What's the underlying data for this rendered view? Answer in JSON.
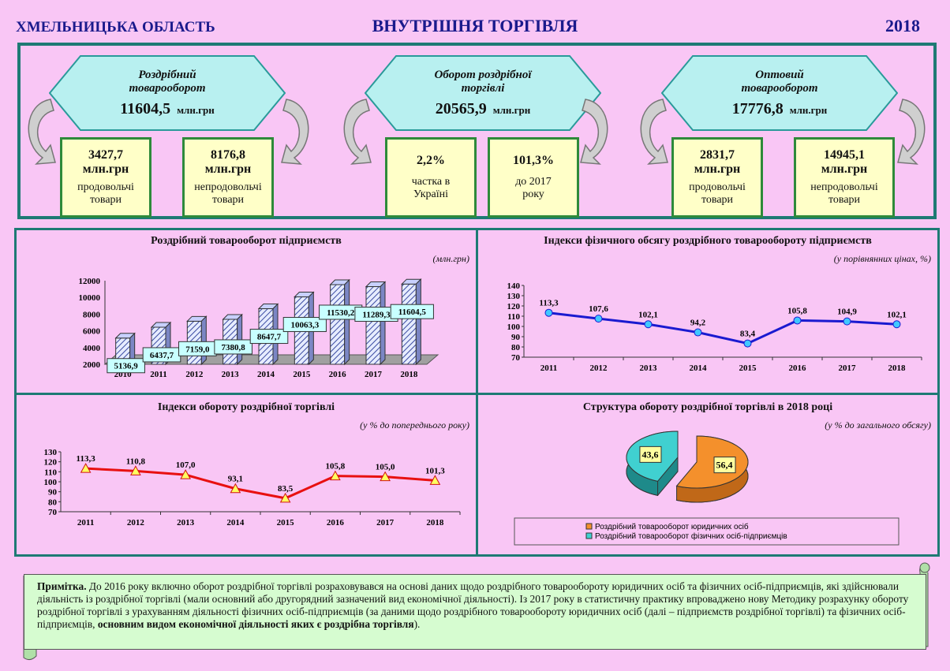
{
  "header": {
    "region": "ХМЕЛЬНИЦЬКА ОБЛАСТЬ",
    "title": "ВНУТРІШНЯ ТОРГІВЛЯ",
    "year": "2018"
  },
  "top": {
    "hexes": [
      {
        "line1": "Роздрібний",
        "line2": "товарооборот",
        "value": "11604,5",
        "unit": "млн.грн"
      },
      {
        "line1": "Оборот роздрібної",
        "line2": "торгівлі",
        "value": "20565,9",
        "unit": "млн.грн"
      },
      {
        "line1": "Оптовий",
        "line2": "товарооборот",
        "value": "17776,8",
        "unit": "млн.грн"
      }
    ],
    "boxes": [
      {
        "value": "3427,7",
        "unit": "млн.грн",
        "l1": "продовольчі",
        "l2": "товари"
      },
      {
        "value": "8176,8",
        "unit": "млн.грн",
        "l1": "непродовольчі",
        "l2": "товари"
      },
      {
        "value": "2,2%",
        "unit": "",
        "l1": "частка в",
        "l2": "Україні"
      },
      {
        "value": "101,3%",
        "unit": "",
        "l1": "до 2017",
        "l2": "року"
      },
      {
        "value": "2831,7",
        "unit": "млн.грн",
        "l1": "продовольчі",
        "l2": "товари"
      },
      {
        "value": "14945,1",
        "unit": "млн.грн",
        "l1": "непродовольчі",
        "l2": "товари"
      }
    ]
  },
  "chart_data": [
    {
      "type": "bar",
      "title": "Роздрібний товарооборот підприємств",
      "unit": "(млн.грн)",
      "categories": [
        "2010",
        "2011",
        "2012",
        "2013",
        "2014",
        "2015",
        "2016",
        "2017",
        "2018"
      ],
      "values": [
        5136.9,
        6437.7,
        7159.0,
        7380.8,
        8647.7,
        10063.3,
        11530.2,
        11289.3,
        11604.5
      ],
      "labels": [
        "5136,9",
        "6437,7",
        "7159,0",
        "7380,8",
        "8647,7",
        "10063,3",
        "11530,2",
        "11289,3",
        "11604,5"
      ],
      "ylim": [
        2000,
        12000
      ],
      "yticks": [
        "2000",
        "4000",
        "6000",
        "8000",
        "10000",
        "12000"
      ]
    },
    {
      "type": "line",
      "title": "Індекси фізичного обсягу роздрібного товарообороту підприємств",
      "unit": "(у порівнянних цінах, %)",
      "categories": [
        "2011",
        "2012",
        "2013",
        "2014",
        "2015",
        "2016",
        "2017",
        "2018"
      ],
      "values": [
        113.3,
        107.6,
        102.1,
        94.2,
        83.4,
        105.8,
        104.9,
        102.1
      ],
      "labels": [
        "113,3",
        "107,6",
        "102,1",
        "94,2",
        "83,4",
        "105,8",
        "104,9",
        "102,1"
      ],
      "ylim": [
        70,
        140
      ],
      "yticks": [
        "70",
        "80",
        "90",
        "100",
        "110",
        "120",
        "130",
        "140"
      ],
      "color": "#1a1ad0"
    },
    {
      "type": "line",
      "title": "Індекси обороту роздрібної торгівлі",
      "unit": "(у % до попереднього року)",
      "categories": [
        "2011",
        "2012",
        "2013",
        "2014",
        "2015",
        "2016",
        "2017",
        "2018"
      ],
      "values": [
        113.3,
        110.8,
        107.0,
        93.1,
        83.5,
        105.8,
        105.0,
        101.3
      ],
      "labels": [
        "113,3",
        "110,8",
        "107,0",
        "93,1",
        "83,5",
        "105,8",
        "105,0",
        "101,3"
      ],
      "ylim": [
        70,
        130
      ],
      "yticks": [
        "70",
        "80",
        "90",
        "100",
        "110",
        "120",
        "130"
      ],
      "color": "#e81010"
    },
    {
      "type": "pie",
      "title": "Структура обороту роздрібної торгівлі в 2018 році",
      "unit": "(у % до загального обсягу)",
      "values": [
        56.4,
        43.6
      ],
      "labels": [
        "56,4",
        "43,6"
      ],
      "legend": [
        "Роздрібний товарооборот юридичних осіб",
        "Роздрібний товарооборот фізичних осіб-підприємців"
      ],
      "colors": [
        "#f4902c",
        "#40d0d0"
      ]
    }
  ],
  "note": {
    "bold_prefix": "Примітка.",
    "text": " До 2016 року включно оборот роздрібної торгівлі розраховувався на основі даних щодо роздрібного товарообороту юридичних осіб та фізичних осіб-підприємців, які здійснювали діяльність із роздрібної торгівлі (мали основний або другорядний зазначений вид економічної діяльності). Із 2017 року в статистичну практику впроваджено нову Методику розрахунку обороту роздрібної торгівлі з урахуванням діяльності фізичних осіб-підприємців (за даними щодо роздрібного товарообороту юридичних осіб (далі – підприємств роздрібної торгівлі) та фізичних осіб-підприємців, ",
    "bold_suffix": "основним видом економічної діяльності яких є роздрібна торгівля",
    "end": ")."
  }
}
